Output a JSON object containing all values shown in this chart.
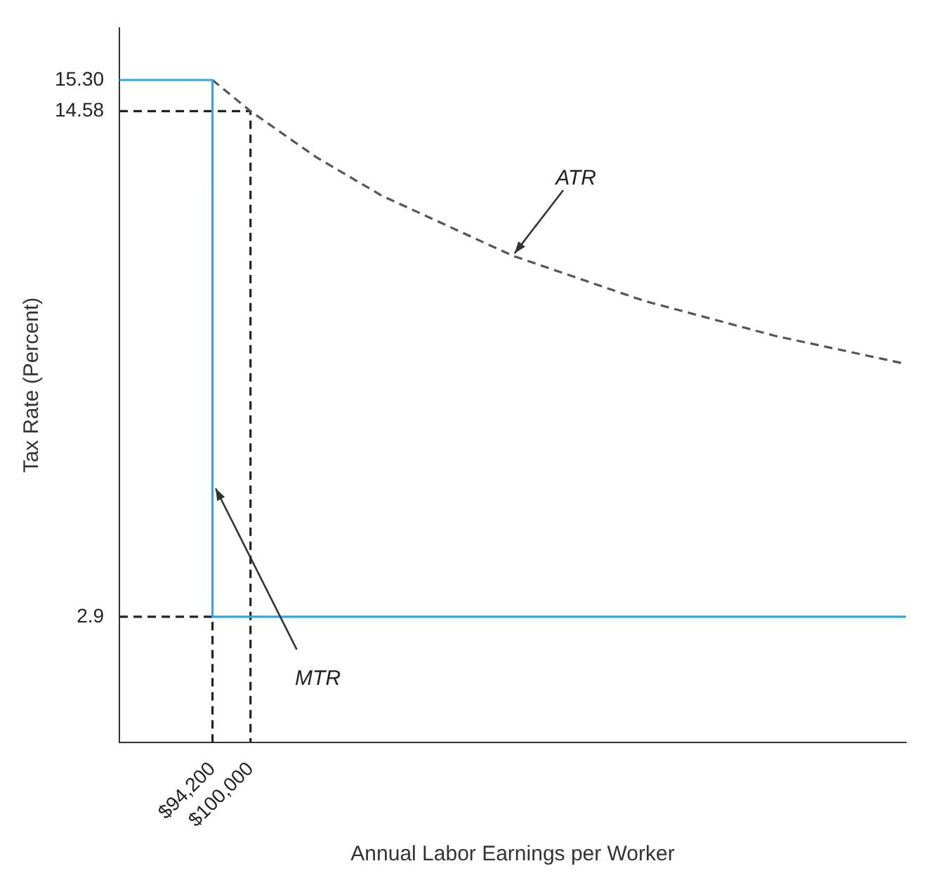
{
  "chart_data": {
    "type": "line",
    "xlabel": "Annual Labor Earnings per Worker",
    "ylabel": "Tax Rate (Percent)",
    "xlim": [
      80000,
      200000
    ],
    "xticks": [
      {
        "value": 94200,
        "label": "$94,200"
      },
      {
        "value": 100000,
        "label": "$100,000"
      }
    ],
    "ylim": [
      0,
      16.5
    ],
    "yticks": [
      2.9,
      14.58,
      {
        "value": 15.3,
        "label": "15.30"
      }
    ],
    "grid": false,
    "legend": false,
    "marker": "none",
    "series": [
      {
        "color": "#29abe2",
        "line_style": "solid",
        "x": [
          80000,
          94200,
          94200,
          200000
        ],
        "values": [
          15.3,
          15.3,
          2.9,
          2.9
        ]
      },
      {
        "color": "#555555",
        "line_style": "dashed",
        "x": [
          94200,
          100000,
          110000,
          120000,
          140000,
          160000,
          180000,
          200000
        ],
        "values": [
          15.3,
          14.58,
          13.52,
          12.63,
          11.24,
          10.2,
          9.39,
          8.74
        ]
      },
      {
        "color": "#222222",
        "line_style": "dashed",
        "x": [
          80000,
          100000,
          100000
        ],
        "values": [
          14.58,
          14.58,
          0
        ]
      },
      {
        "color": "#222222",
        "line_style": "dashed",
        "x": [
          80000,
          94200,
          94200
        ],
        "values": [
          2.9,
          2.9,
          0
        ]
      }
    ],
    "annotations": [
      {
        "text": "ATR",
        "x": 140000,
        "y": 11.24
      },
      {
        "text": "MTR",
        "x": 94200,
        "y": 6
      }
    ]
  }
}
